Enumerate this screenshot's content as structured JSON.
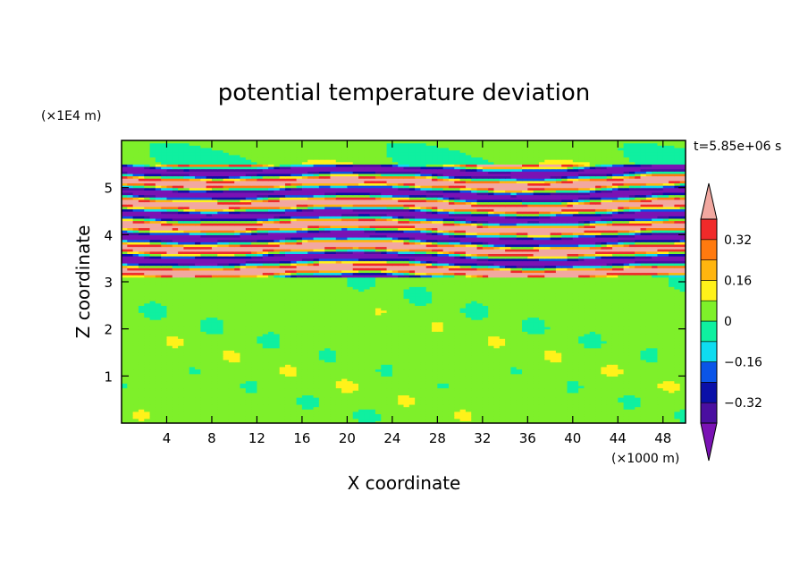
{
  "chart_data": {
    "type": "heatmap",
    "title": "potential temperature deviation",
    "xlabel": "X coordinate",
    "ylabel": "Z coordinate",
    "x_units": "(×1000 m)",
    "y_units": "(×1E4 m)",
    "time_label": "t=5.85e+06 s",
    "xlim": [
      0,
      50
    ],
    "ylim": [
      0,
      6
    ],
    "x_ticks": [
      4,
      8,
      12,
      16,
      20,
      24,
      28,
      32,
      36,
      40,
      44,
      48
    ],
    "y_ticks": [
      1,
      2,
      3,
      4,
      5
    ],
    "colorbar": {
      "range": [
        -0.48,
        0.48
      ],
      "step": 0.08,
      "tick_values": [
        0.32,
        0.16,
        0,
        -0.16,
        -0.32
      ],
      "tick_labels": [
        "0.32",
        "0.16",
        "0",
        "−0.16",
        "−0.32"
      ],
      "colors": [
        "#7a12b4",
        "#4a0fa0",
        "#0a10a8",
        "#0a55e8",
        "#0fdcf0",
        "#0ff0a0",
        "#7ef02a",
        "#fff21a",
        "#ffb50f",
        "#ff7a0f",
        "#f02a2a",
        "#f2a8a0"
      ]
    },
    "stable_band_z": [
      0,
      3.1
    ],
    "wave_band_z": [
      3.1,
      5.5
    ],
    "top_band_z": [
      5.5,
      6.0
    ]
  }
}
